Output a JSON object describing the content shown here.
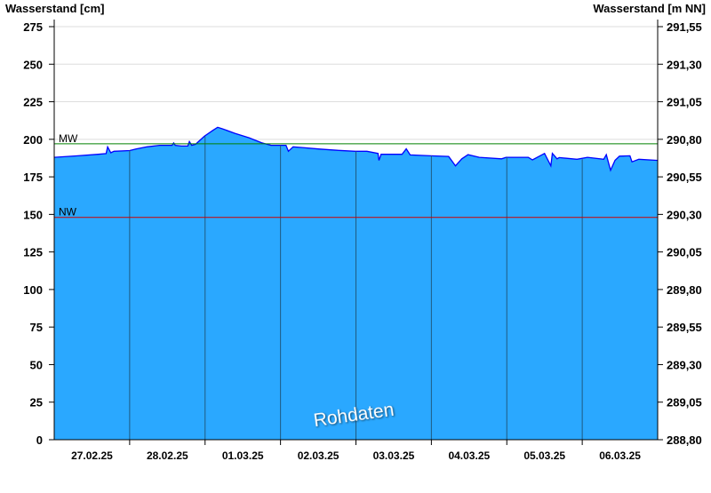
{
  "chart_data": {
    "type": "area",
    "ylabel_left": "Wasserstand [cm]",
    "ylabel_right": "Wasserstand [m NN]",
    "ylim": [
      0,
      275
    ],
    "yticks_left": [
      "0",
      "25",
      "50",
      "75",
      "100",
      "125",
      "150",
      "175",
      "200",
      "225",
      "250",
      "275"
    ],
    "yticks_right": [
      "288,80",
      "289,05",
      "289,30",
      "289,55",
      "289,80",
      "290,05",
      "290,30",
      "290,55",
      "290,80",
      "291,05",
      "291,30",
      "291,55"
    ],
    "x_range": [
      "2025-02-27T00:00",
      "2025-03-07T00:00"
    ],
    "xticks": [
      "27.02.25",
      "28.02.25",
      "01.03.25",
      "02.03.25",
      "03.03.25",
      "04.03.25",
      "05.03.25",
      "06.03.25"
    ],
    "grid": true,
    "reference_lines": [
      {
        "label": "MW",
        "value": 197,
        "color": "#008000"
      },
      {
        "label": "NW",
        "value": 148,
        "color": "#cc0000"
      }
    ],
    "watermark": "Rohdaten",
    "colors": {
      "fill": "#2aa8ff",
      "line": "#0000ff",
      "day_lines": "#1f5a80",
      "grid": "#dddddd"
    },
    "series": [
      {
        "x": [
          "2025-02-27T00:00",
          "2025-02-27T07:30",
          "2025-02-27T14:00",
          "2025-02-27T16:30",
          "2025-02-27T17:00",
          "2025-02-27T18:00",
          "2025-02-27T19:00",
          "2025-02-28T00:00",
          "2025-02-28T02:00",
          "2025-02-28T05:30",
          "2025-02-28T09:30",
          "2025-02-28T13:30",
          "2025-02-28T14:00",
          "2025-02-28T14:30",
          "2025-02-28T16:30",
          "2025-02-28T18:30",
          "2025-02-28T19:00",
          "2025-02-28T19:45",
          "2025-02-28T21:00",
          "2025-02-28T23:45",
          "2025-03-01T02:30",
          "2025-03-01T04:00",
          "2025-03-01T05:30",
          "2025-03-01T09:30",
          "2025-03-01T14:00",
          "2025-03-01T18:00",
          "2025-03-01T21:00",
          "2025-03-01T23:45",
          "2025-03-02T01:45",
          "2025-03-02T02:30",
          "2025-03-02T04:00",
          "2025-03-02T07:00",
          "2025-03-02T12:30",
          "2025-03-02T18:00",
          "2025-03-02T23:45",
          "2025-03-03T03:30",
          "2025-03-03T07:00",
          "2025-03-03T07:20",
          "2025-03-03T08:00",
          "2025-03-03T14:40",
          "2025-03-03T16:00",
          "2025-03-03T17:15",
          "2025-03-03T23:45",
          "2025-03-04T05:30",
          "2025-03-04T07:40",
          "2025-03-04T09:40",
          "2025-03-04T11:40",
          "2025-03-04T15:15",
          "2025-03-04T22:20",
          "2025-03-04T23:45",
          "2025-03-05T06:50",
          "2025-03-05T08:10",
          "2025-03-05T12:00",
          "2025-03-05T14:00",
          "2025-03-05T14:30",
          "2025-03-05T16:00",
          "2025-03-05T16:40",
          "2025-03-05T22:20",
          "2025-03-06T01:40",
          "2025-03-06T06:50",
          "2025-03-06T07:40",
          "2025-03-06T09:00",
          "2025-03-06T10:25",
          "2025-03-06T11:50",
          "2025-03-06T15:10",
          "2025-03-06T15:50",
          "2025-03-06T18:00",
          "2025-03-06T23:40"
        ],
        "values": [
          188,
          189,
          190,
          190.5,
          195,
          191,
          192,
          192.5,
          193.5,
          195,
          196,
          196,
          197.6,
          196,
          195.5,
          195.5,
          198.5,
          196,
          196.7,
          202,
          206,
          208,
          207,
          204,
          201,
          197.7,
          196,
          196,
          196,
          192,
          195,
          194.5,
          193.5,
          192.7,
          192,
          192,
          190.6,
          186,
          190,
          190,
          193.7,
          189.6,
          189,
          188.6,
          182.3,
          187,
          189.8,
          188,
          187,
          188,
          188,
          186.3,
          190.6,
          182.3,
          190.6,
          187,
          187.8,
          186.7,
          188,
          186.7,
          189.8,
          179.4,
          186,
          188.8,
          189,
          185,
          186.7,
          186
        ]
      }
    ]
  }
}
